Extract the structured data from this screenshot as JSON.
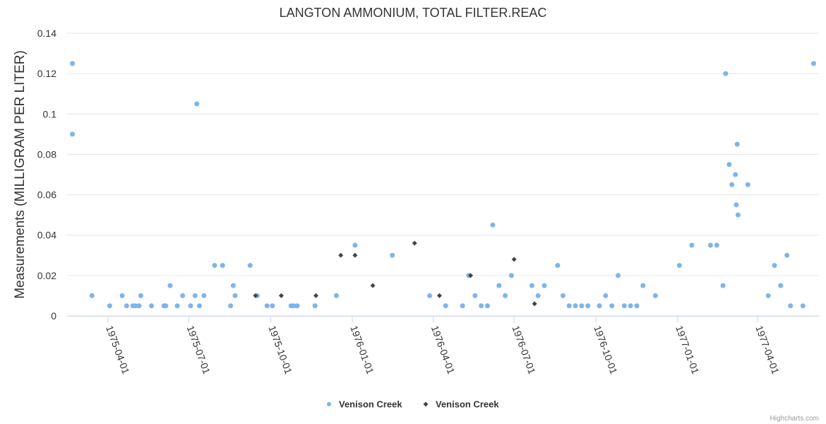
{
  "chart_data": {
    "type": "scatter",
    "title": "LANGTON AMMONIUM, TOTAL FILTER.REAC",
    "ylabel": "Measurements (MILLIGRAM PER LITER)",
    "xlabel": "",
    "x_type": "date",
    "xlim": [
      "1975-02-14",
      "1977-06-09"
    ],
    "ylim": [
      0,
      0.14
    ],
    "yticks": [
      0,
      0.02,
      0.04,
      0.06,
      0.08,
      0.1,
      0.12,
      0.14
    ],
    "ytick_labels": [
      "0",
      "0.02",
      "0.04",
      "0.06",
      "0.08",
      "0.1",
      "0.12",
      "0.14"
    ],
    "xticks": [
      "1975-04-01",
      "1975-07-01",
      "1975-10-01",
      "1976-01-01",
      "1976-04-01",
      "1976-07-01",
      "1976-10-01",
      "1977-01-01",
      "1977-04-01"
    ],
    "grid": {
      "horizontal": true,
      "vertical": false
    },
    "legend_position": "bottom-center",
    "series": [
      {
        "name": "Venison Creek",
        "color": "#7cb5ec",
        "marker": "circle",
        "points": [
          [
            "1975-02-20",
            0.125
          ],
          [
            "1975-02-20",
            0.09
          ],
          [
            "1975-03-14",
            0.01
          ],
          [
            "1975-04-03",
            0.005
          ],
          [
            "1975-04-17",
            0.01
          ],
          [
            "1975-04-22",
            0.005
          ],
          [
            "1975-04-29",
            0.005
          ],
          [
            "1975-05-02",
            0.005
          ],
          [
            "1975-05-06",
            0.005
          ],
          [
            "1975-05-08",
            0.01
          ],
          [
            "1975-05-20",
            0.005
          ],
          [
            "1975-06-03",
            0.005
          ],
          [
            "1975-06-05",
            0.005
          ],
          [
            "1975-06-10",
            0.015
          ],
          [
            "1975-06-18",
            0.005
          ],
          [
            "1975-06-24",
            0.01
          ],
          [
            "1975-07-10",
            0.105
          ],
          [
            "1975-07-03",
            0.005
          ],
          [
            "1975-07-08",
            0.01
          ],
          [
            "1975-07-13",
            0.005
          ],
          [
            "1975-07-18",
            0.01
          ],
          [
            "1975-07-30",
            0.025
          ],
          [
            "1975-08-08",
            0.025
          ],
          [
            "1975-08-17",
            0.005
          ],
          [
            "1975-08-20",
            0.015
          ],
          [
            "1975-08-22",
            0.01
          ],
          [
            "1975-09-08",
            0.025
          ],
          [
            "1975-09-16",
            0.01
          ],
          [
            "1975-09-27",
            0.005
          ],
          [
            "1975-10-03",
            0.005
          ],
          [
            "1975-10-24",
            0.005
          ],
          [
            "1975-10-27",
            0.005
          ],
          [
            "1975-10-31",
            0.005
          ],
          [
            "1975-11-20",
            0.005
          ],
          [
            "1975-12-14",
            0.01
          ],
          [
            "1976-01-04",
            0.035
          ],
          [
            "1976-02-15",
            0.03
          ],
          [
            "1976-03-28",
            0.01
          ],
          [
            "1976-04-15",
            0.005
          ],
          [
            "1976-05-04",
            0.005
          ],
          [
            "1976-05-11",
            0.02
          ],
          [
            "1976-05-18",
            0.01
          ],
          [
            "1976-05-25",
            0.005
          ],
          [
            "1976-06-01",
            0.005
          ],
          [
            "1976-06-07",
            0.045
          ],
          [
            "1976-06-14",
            0.015
          ],
          [
            "1976-06-21",
            0.01
          ],
          [
            "1976-06-28",
            0.02
          ],
          [
            "1976-07-21",
            0.015
          ],
          [
            "1976-07-28",
            0.01
          ],
          [
            "1976-08-04",
            0.015
          ],
          [
            "1976-08-19",
            0.025
          ],
          [
            "1976-08-25",
            0.01
          ],
          [
            "1976-09-01",
            0.005
          ],
          [
            "1976-09-08",
            0.005
          ],
          [
            "1976-09-15",
            0.005
          ],
          [
            "1976-09-22",
            0.005
          ],
          [
            "1976-10-05",
            0.005
          ],
          [
            "1976-10-12",
            0.01
          ],
          [
            "1976-10-19",
            0.005
          ],
          [
            "1976-10-26",
            0.02
          ],
          [
            "1976-11-02",
            0.005
          ],
          [
            "1976-11-09",
            0.005
          ],
          [
            "1976-11-16",
            0.005
          ],
          [
            "1976-11-23",
            0.015
          ],
          [
            "1976-12-07",
            0.01
          ],
          [
            "1977-01-03",
            0.025
          ],
          [
            "1977-01-17",
            0.035
          ],
          [
            "1977-02-07",
            0.035
          ],
          [
            "1977-02-14",
            0.035
          ],
          [
            "1977-02-21",
            0.015
          ],
          [
            "1977-02-24",
            0.12
          ],
          [
            "1977-02-28",
            0.075
          ],
          [
            "1977-03-03",
            0.065
          ],
          [
            "1977-03-07",
            0.07
          ],
          [
            "1977-03-08",
            0.055
          ],
          [
            "1977-03-09",
            0.085
          ],
          [
            "1977-03-10",
            0.05
          ],
          [
            "1977-03-21",
            0.065
          ],
          [
            "1977-04-13",
            0.01
          ],
          [
            "1977-04-20",
            0.025
          ],
          [
            "1977-04-27",
            0.015
          ],
          [
            "1977-05-04",
            0.03
          ],
          [
            "1977-05-08",
            0.005
          ],
          [
            "1977-05-22",
            0.005
          ],
          [
            "1977-06-03",
            0.125
          ]
        ]
      },
      {
        "name": "Venison Creek",
        "color": "#434348",
        "marker": "diamond",
        "points": [
          [
            "1975-09-14",
            0.01
          ],
          [
            "1975-10-13",
            0.01
          ],
          [
            "1975-11-21",
            0.01
          ],
          [
            "1975-12-19",
            0.03
          ],
          [
            "1976-01-04",
            0.03
          ],
          [
            "1976-01-24",
            0.015
          ],
          [
            "1976-03-11",
            0.036
          ],
          [
            "1976-04-08",
            0.01
          ],
          [
            "1976-05-13",
            0.02
          ],
          [
            "1976-07-01",
            0.028
          ],
          [
            "1976-07-24",
            0.006
          ]
        ]
      }
    ]
  },
  "credits": "Highcharts.com"
}
